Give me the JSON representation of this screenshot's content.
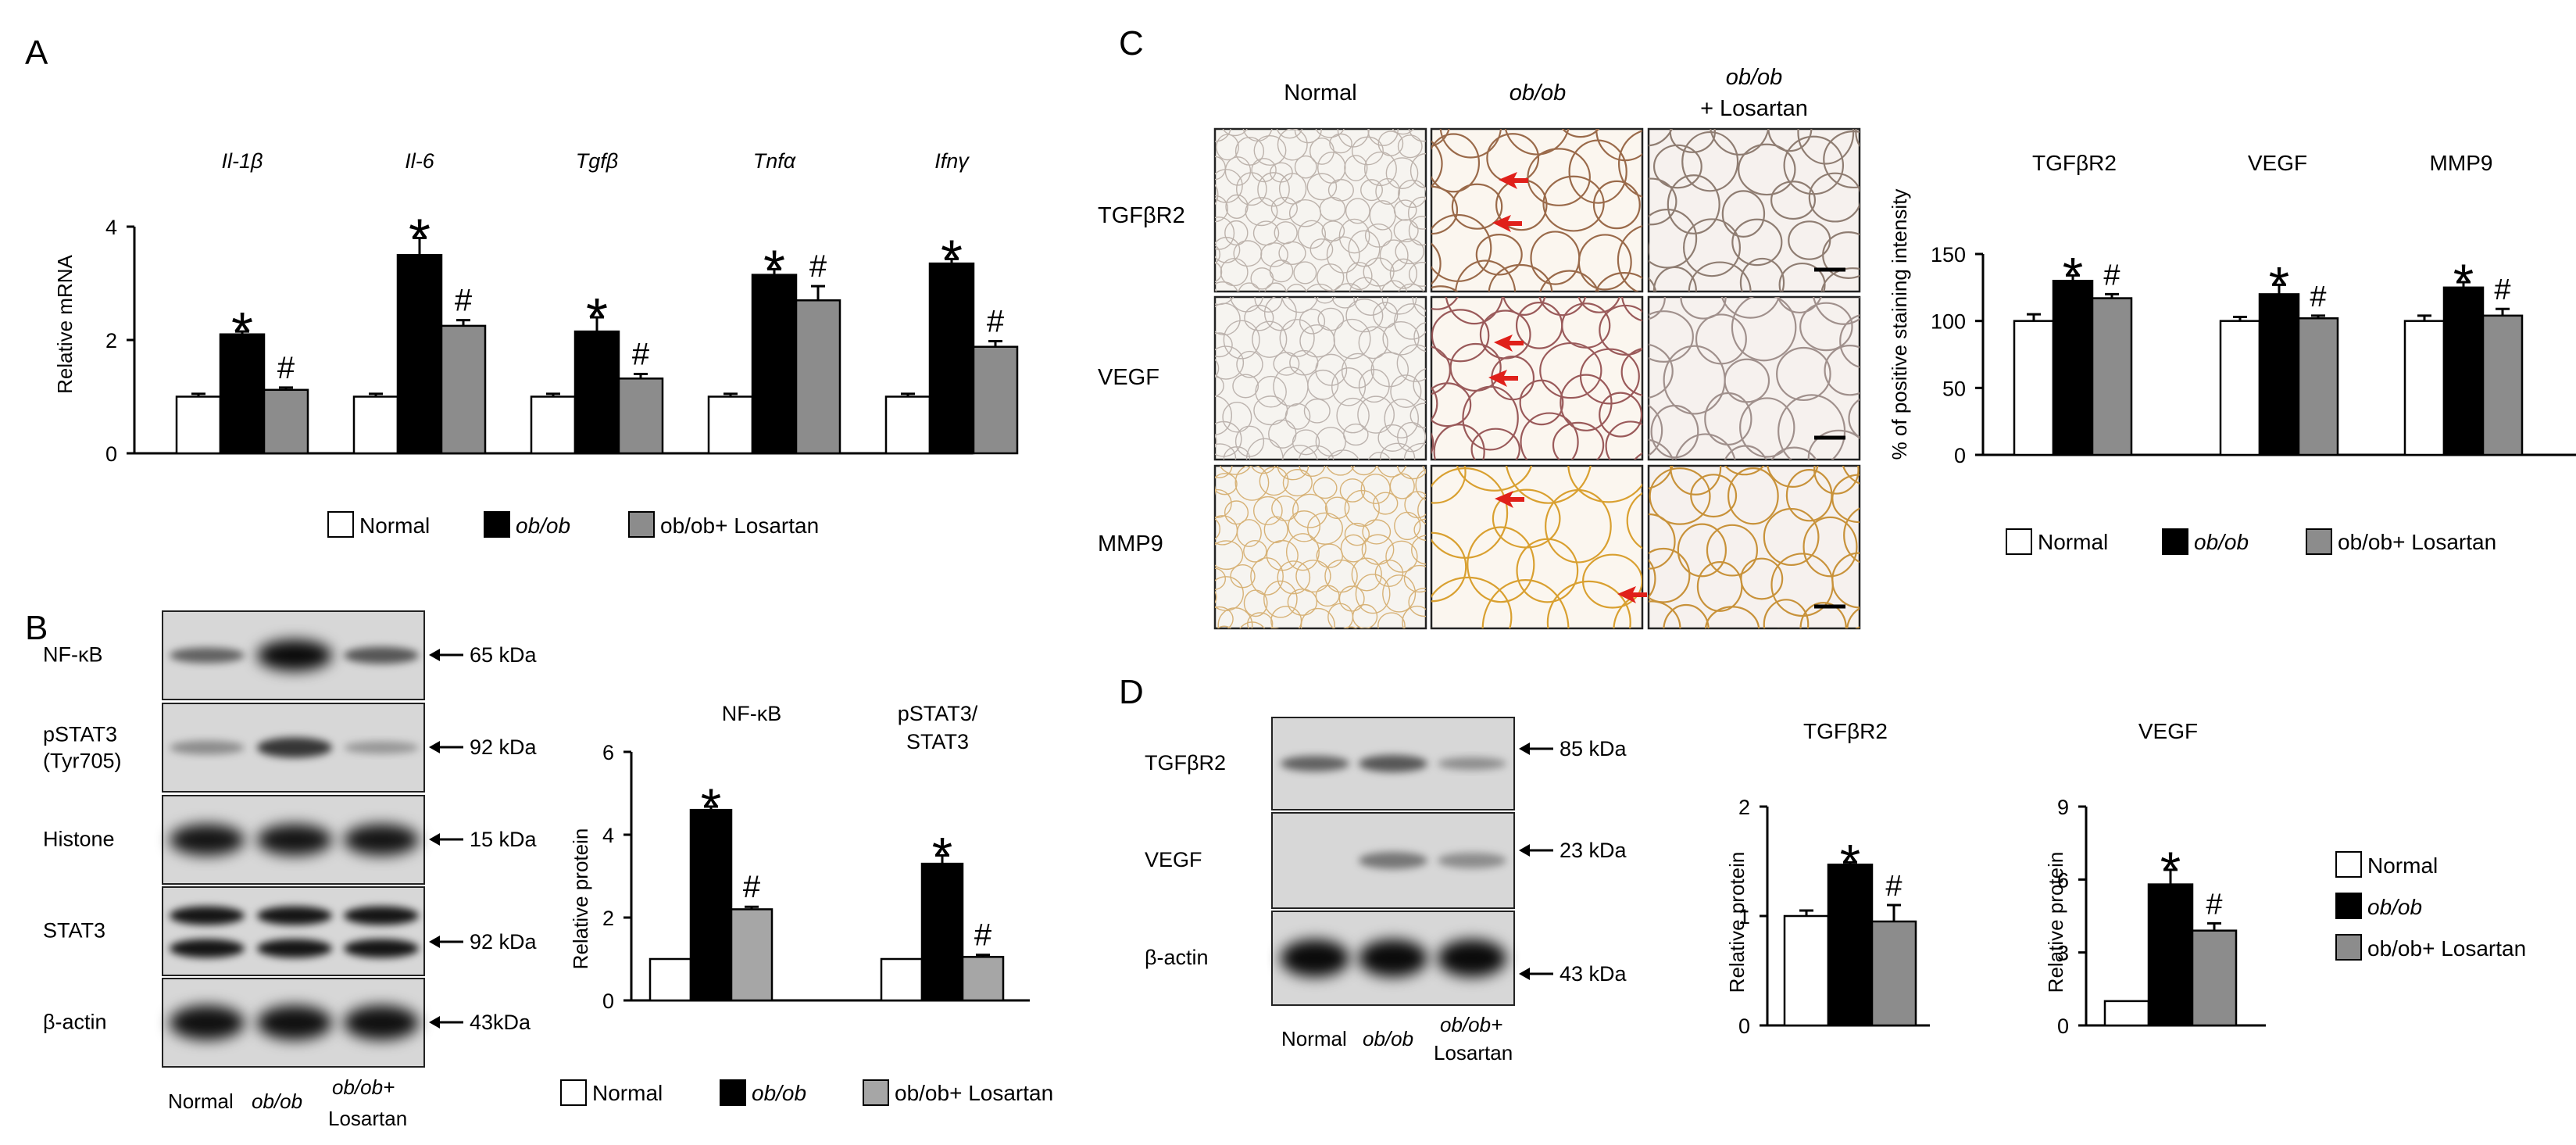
{
  "panel_labels": {
    "a": "A",
    "b": "B",
    "c": "C",
    "d": "D"
  },
  "legend": {
    "normal": "Normal",
    "obob": "ob/ob",
    "obob_losartan": "ob/ob+ Losartan",
    "obob_losartan_d": "ob/ob+ Losartan"
  },
  "colors": {
    "normal": "#ffffff",
    "obob": "#000000",
    "losartan": "#8c8c8c",
    "losartan_light": "#a6a6a6",
    "arrow_red": "#e0201a"
  },
  "panel_a": {
    "ylabel": "Relative mRNA",
    "yticks": [
      "0",
      "2",
      "4"
    ],
    "gene_labels": [
      "Il-1β",
      "Il-6",
      "Tgfβ",
      "Tnfα",
      "Ifnγ"
    ]
  },
  "panel_b": {
    "blot_rows": [
      "NF-κB",
      "pSTAT3\n(Tyr705)",
      "Histone",
      "STAT3",
      "β-actin"
    ],
    "blot_row_line1": [
      "NF-κB",
      "pSTAT3",
      "Histone",
      "STAT3",
      "β-actin"
    ],
    "blot_row_line2": [
      "",
      "(Tyr705)",
      "",
      "",
      ""
    ],
    "kda": [
      "65 kDa",
      "92 kDa",
      "15 kDa",
      "92 kDa",
      "43kDa"
    ],
    "lane_labels": {
      "normal": "Normal",
      "obob": "ob/ob",
      "obob_l1": "ob/ob+",
      "obob_l2": "Losartan"
    },
    "ylabel": "Relative protein",
    "yticks": [
      "0",
      "2",
      "4",
      "6"
    ],
    "group_titles": [
      "NF-κB",
      "pSTAT3/",
      "STAT3"
    ]
  },
  "panel_c": {
    "col_headers": [
      "Normal",
      "ob/ob",
      "ob/ob",
      "+ Losartan"
    ],
    "row_labels": [
      "TGFβR2",
      "VEGF",
      "MMP9"
    ],
    "ylabel": "% of positive staining intensity",
    "yticks": [
      "0",
      "50",
      "100",
      "150"
    ],
    "group_titles": [
      "TGFβR2",
      "VEGF",
      "MMP9"
    ]
  },
  "panel_d": {
    "blot_rows": [
      "TGFβR2",
      "VEGF",
      "β-actin"
    ],
    "kda": [
      "85 kDa",
      "23 kDa",
      "43 kDa"
    ],
    "lane_labels": {
      "normal": "Normal",
      "obob": "ob/ob",
      "obob_l1": "ob/ob+",
      "obob_l2": "Losartan"
    },
    "chart1": {
      "title": "TGFβR2",
      "ylabel": "Relative protein",
      "yticks": [
        "0",
        "1",
        "2"
      ]
    },
    "chart2": {
      "title": "VEGF",
      "ylabel": "Relative protein",
      "yticks": [
        "0",
        "3",
        "6",
        "9"
      ]
    }
  },
  "markers": {
    "star": "*",
    "hash": "#"
  },
  "chart_data": [
    {
      "type": "bar",
      "id": "A",
      "categories": [
        "Il-1β",
        "Il-6",
        "Tgfβ",
        "Tnfα",
        "Ifnγ"
      ],
      "ylabel": "Relative mRNA",
      "ylim": [
        0,
        4
      ],
      "series": [
        {
          "name": "Normal",
          "values": [
            1.0,
            1.0,
            1.0,
            1.0,
            1.0
          ],
          "errors": [
            0.05,
            0.05,
            0.05,
            0.05,
            0.05
          ]
        },
        {
          "name": "ob/ob",
          "values": [
            2.1,
            3.5,
            2.15,
            3.15,
            3.35
          ],
          "errors": [
            0.05,
            0.3,
            0.25,
            0.1,
            0.08
          ]
        },
        {
          "name": "ob/ob+ Losartan",
          "values": [
            1.12,
            2.25,
            1.32,
            2.7,
            1.88
          ],
          "errors": [
            0.04,
            0.1,
            0.08,
            0.25,
            0.1
          ]
        }
      ],
      "annotations": {
        "star_on": "ob/ob",
        "hash_on": "ob/ob+ Losartan"
      }
    },
    {
      "type": "bar",
      "id": "B",
      "categories": [
        "NF-κB",
        "pSTAT3/STAT3"
      ],
      "ylabel": "Relative protein",
      "ylim": [
        0,
        6
      ],
      "series": [
        {
          "name": "Normal",
          "values": [
            1.0,
            1.0
          ],
          "errors": [
            0,
            0
          ]
        },
        {
          "name": "ob/ob",
          "values": [
            4.6,
            3.3
          ],
          "errors": [
            0.08,
            0.2
          ]
        },
        {
          "name": "ob/ob+ Losartan",
          "values": [
            2.2,
            1.05
          ],
          "errors": [
            0.06,
            0.05
          ]
        }
      ],
      "annotations": {
        "star_on": "ob/ob",
        "hash_on": "ob/ob+ Losartan"
      }
    },
    {
      "type": "bar",
      "id": "C",
      "categories": [
        "TGFβR2",
        "VEGF",
        "MMP9"
      ],
      "ylabel": "% of positive staining intensity",
      "ylim": [
        0,
        150
      ],
      "series": [
        {
          "name": "Normal",
          "values": [
            100,
            100,
            100
          ],
          "errors": [
            5,
            3,
            4
          ]
        },
        {
          "name": "ob/ob",
          "values": [
            130,
            120,
            125
          ],
          "errors": [
            4,
            7,
            4
          ]
        },
        {
          "name": "ob/ob+ Losartan",
          "values": [
            117,
            102,
            104
          ],
          "errors": [
            3,
            2,
            5
          ]
        }
      ],
      "annotations": {
        "star_on": "ob/ob",
        "hash_on": "ob/ob+ Losartan"
      }
    },
    {
      "type": "bar",
      "id": "D-TGFbR2",
      "categories": [
        "TGFβR2"
      ],
      "ylabel": "Relative protein",
      "ylim": [
        0,
        2
      ],
      "series": [
        {
          "name": "Normal",
          "values": [
            1.0
          ],
          "errors": [
            0.05
          ]
        },
        {
          "name": "ob/ob",
          "values": [
            1.47
          ],
          "errors": [
            0.02
          ]
        },
        {
          "name": "ob/ob+ Losartan",
          "values": [
            0.95
          ],
          "errors": [
            0.15
          ]
        }
      ],
      "annotations": {
        "star_on": "ob/ob",
        "hash_on": "ob/ob+ Losartan"
      }
    },
    {
      "type": "bar",
      "id": "D-VEGF",
      "categories": [
        "VEGF"
      ],
      "ylabel": "Relative protein",
      "ylim": [
        0,
        9
      ],
      "series": [
        {
          "name": "Normal",
          "values": [
            1.0
          ],
          "errors": [
            0
          ]
        },
        {
          "name": "ob/ob",
          "values": [
            5.8
          ],
          "errors": [
            0.6
          ]
        },
        {
          "name": "ob/ob+ Losartan",
          "values": [
            3.9
          ],
          "errors": [
            0.3
          ]
        }
      ],
      "annotations": {
        "star_on": "ob/ob",
        "hash_on": "ob/ob+ Losartan"
      }
    }
  ]
}
